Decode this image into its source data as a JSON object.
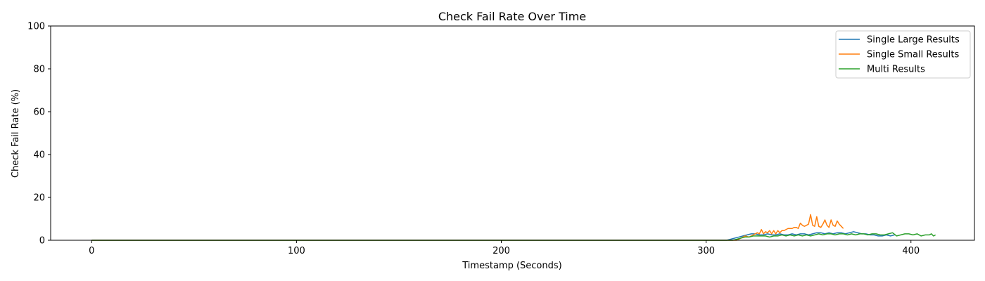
{
  "chart_data": {
    "type": "line",
    "title": "Check Fail Rate Over Time",
    "xlabel": "Timestamp (Seconds)",
    "ylabel": "Check Fail Rate (%)",
    "xlim": [
      -20,
      431
    ],
    "ylim": [
      0,
      100
    ],
    "xticks": [
      0,
      100,
      200,
      300,
      400
    ],
    "yticks": [
      0,
      20,
      40,
      60,
      80,
      100
    ],
    "grid": false,
    "legend_position": "top-right",
    "series": [
      {
        "name": "Single Large Results",
        "color": "#1f77b4",
        "points": [
          [
            0,
            0
          ],
          [
            310,
            0
          ],
          [
            312,
            0.5
          ],
          [
            314,
            1.0
          ],
          [
            316,
            1.5
          ],
          [
            318,
            2.0
          ],
          [
            320,
            2.5
          ],
          [
            322,
            3.0
          ],
          [
            324,
            3.0
          ],
          [
            326,
            2.5
          ],
          [
            328,
            2.5
          ],
          [
            330,
            3.0
          ],
          [
            332,
            2.5
          ],
          [
            334,
            2.5
          ],
          [
            336,
            3.0
          ],
          [
            338,
            2.5
          ],
          [
            340,
            2.5
          ],
          [
            342,
            3.0
          ],
          [
            344,
            2.5
          ],
          [
            346,
            3.0
          ],
          [
            348,
            3.0
          ],
          [
            350,
            2.5
          ],
          [
            352,
            3.0
          ],
          [
            354,
            3.5
          ],
          [
            356,
            3.5
          ],
          [
            358,
            3.0
          ],
          [
            360,
            3.5
          ],
          [
            362,
            3.0
          ],
          [
            364,
            3.5
          ],
          [
            366,
            3.5
          ],
          [
            368,
            3.0
          ],
          [
            370,
            3.5
          ],
          [
            372,
            4.0
          ],
          [
            374,
            3.5
          ],
          [
            376,
            3.0
          ],
          [
            378,
            3.0
          ],
          [
            380,
            2.5
          ],
          [
            382,
            2.5
          ],
          [
            384,
            2.0
          ],
          [
            386,
            2.0
          ],
          [
            388,
            2.5
          ],
          [
            390,
            2.0
          ],
          [
            392,
            2.5
          ]
        ]
      },
      {
        "name": "Single Small Results",
        "color": "#ff7f0e",
        "points": [
          [
            0,
            0
          ],
          [
            315,
            0
          ],
          [
            317,
            1.0
          ],
          [
            319,
            2.0
          ],
          [
            321,
            1.5
          ],
          [
            323,
            2.5
          ],
          [
            325,
            3.5
          ],
          [
            326,
            3.0
          ],
          [
            327,
            5.0
          ],
          [
            328,
            3.0
          ],
          [
            329,
            4.0
          ],
          [
            330,
            3.5
          ],
          [
            331,
            4.5
          ],
          [
            332,
            3.0
          ],
          [
            333,
            4.5
          ],
          [
            334,
            3.0
          ],
          [
            335,
            4.5
          ],
          [
            336,
            3.5
          ],
          [
            337,
            4.5
          ],
          [
            338,
            4.5
          ],
          [
            339,
            5.0
          ],
          [
            340,
            5.5
          ],
          [
            341,
            5.5
          ],
          [
            342,
            5.5
          ],
          [
            343,
            6.0
          ],
          [
            344,
            6.0
          ],
          [
            345,
            5.5
          ],
          [
            346,
            8.0
          ],
          [
            347,
            7.0
          ],
          [
            348,
            6.5
          ],
          [
            349,
            7.0
          ],
          [
            350,
            7.5
          ],
          [
            351,
            12.0
          ],
          [
            352,
            7.0
          ],
          [
            353,
            6.5
          ],
          [
            354,
            11.0
          ],
          [
            355,
            6.5
          ],
          [
            356,
            6.0
          ],
          [
            357,
            7.5
          ],
          [
            358,
            9.5
          ],
          [
            359,
            7.0
          ],
          [
            360,
            6.0
          ],
          [
            361,
            9.5
          ],
          [
            362,
            7.0
          ],
          [
            363,
            6.5
          ],
          [
            364,
            9.0
          ],
          [
            365,
            7.5
          ],
          [
            366,
            6.5
          ],
          [
            367,
            5.5
          ]
        ]
      },
      {
        "name": "Multi Results",
        "color": "#2ca02c",
        "points": [
          [
            0,
            0
          ],
          [
            313,
            0
          ],
          [
            315,
            0.5
          ],
          [
            317,
            1.0
          ],
          [
            319,
            1.5
          ],
          [
            321,
            1.5
          ],
          [
            323,
            2.0
          ],
          [
            325,
            2.0
          ],
          [
            327,
            2.0
          ],
          [
            329,
            2.0
          ],
          [
            331,
            1.5
          ],
          [
            333,
            2.0
          ],
          [
            335,
            2.0
          ],
          [
            337,
            2.5
          ],
          [
            339,
            2.0
          ],
          [
            341,
            2.5
          ],
          [
            343,
            2.0
          ],
          [
            345,
            2.5
          ],
          [
            347,
            2.0
          ],
          [
            349,
            2.5
          ],
          [
            351,
            2.0
          ],
          [
            353,
            2.5
          ],
          [
            355,
            3.0
          ],
          [
            357,
            2.5
          ],
          [
            359,
            3.0
          ],
          [
            361,
            3.0
          ],
          [
            363,
            2.5
          ],
          [
            365,
            3.0
          ],
          [
            367,
            3.0
          ],
          [
            369,
            2.5
          ],
          [
            371,
            3.0
          ],
          [
            373,
            2.5
          ],
          [
            375,
            3.0
          ],
          [
            377,
            3.0
          ],
          [
            379,
            2.5
          ],
          [
            381,
            3.0
          ],
          [
            383,
            3.0
          ],
          [
            385,
            2.5
          ],
          [
            387,
            2.5
          ],
          [
            389,
            3.0
          ],
          [
            391,
            3.5
          ],
          [
            393,
            2.0
          ],
          [
            395,
            2.5
          ],
          [
            397,
            3.0
          ],
          [
            399,
            3.0
          ],
          [
            401,
            2.5
          ],
          [
            403,
            3.0
          ],
          [
            405,
            2.0
          ],
          [
            407,
            2.5
          ],
          [
            409,
            2.5
          ],
          [
            410,
            3.0
          ],
          [
            411,
            2.0
          ],
          [
            412,
            2.5
          ]
        ]
      }
    ]
  }
}
